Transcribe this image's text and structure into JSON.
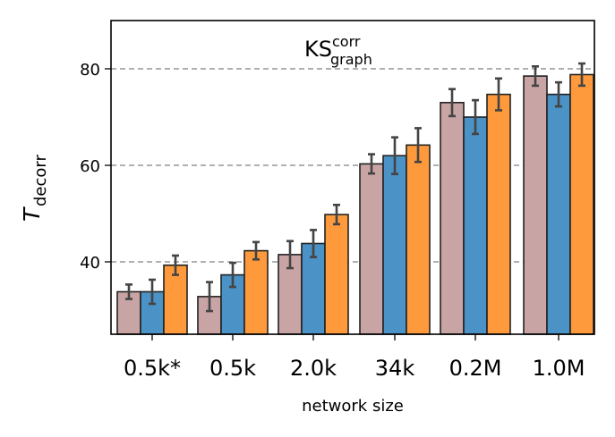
{
  "chart_data": {
    "type": "bar",
    "title": "KS",
    "title_superscript": "corr",
    "title_subscript": "graph",
    "xlabel": "network size",
    "ylabel": "T",
    "ylabel_subscript": "decorr",
    "categories": [
      "0.5k*",
      "0.5k",
      "2.0k",
      "34k",
      "0.2M",
      "1.0M"
    ],
    "ylim": [
      25,
      90
    ],
    "yticks": [
      "40",
      "60",
      "80"
    ],
    "grid": "horizontal dashed at y ticks",
    "legend": "none",
    "series": [
      {
        "color": "#c9a4a5",
        "values": [
          33.8,
          32.8,
          41.5,
          60.3,
          73.0,
          78.5
        ],
        "errors": [
          1.5,
          3.0,
          2.8,
          2.0,
          2.8,
          2.0
        ]
      },
      {
        "color": "#4b92c6",
        "values": [
          33.8,
          37.3,
          43.8,
          62.0,
          70.0,
          74.7
        ],
        "errors": [
          2.5,
          2.5,
          2.8,
          3.8,
          3.5,
          2.5
        ]
      },
      {
        "color": "#ff9a3c",
        "values": [
          39.3,
          42.3,
          49.8,
          64.2,
          74.7,
          78.8
        ],
        "errors": [
          2.0,
          1.8,
          2.0,
          3.5,
          3.3,
          2.3
        ]
      }
    ]
  }
}
